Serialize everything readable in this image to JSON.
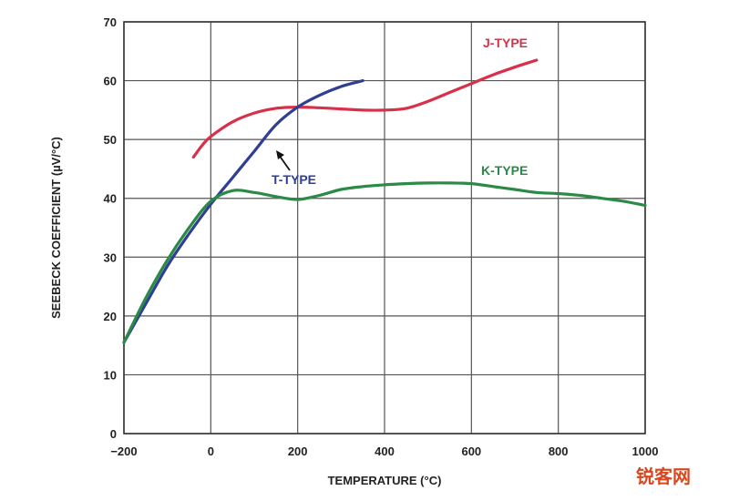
{
  "chart_data": {
    "type": "line",
    "xlabel": "TEMPERATURE (°C)",
    "ylabel": "SEEBECK COEFFICIENT (µV/°C)",
    "xlim": [
      -200,
      1000
    ],
    "ylim": [
      0,
      70
    ],
    "x_ticks": [
      "−200",
      "0",
      "200",
      "400",
      "600",
      "800",
      "1000"
    ],
    "y_ticks": [
      "0",
      "10",
      "20",
      "30",
      "40",
      "50",
      "60",
      "70"
    ],
    "grid": true,
    "series": [
      {
        "name": "J-TYPE",
        "color": "#d9304a",
        "x": [
          -40,
          -20,
          0,
          50,
          100,
          150,
          200,
          250,
          300,
          350,
          400,
          450,
          500,
          550,
          600,
          650,
          700,
          750
        ],
        "y": [
          47,
          49,
          50.5,
          53,
          54.5,
          55.3,
          55.5,
          55.4,
          55.2,
          55.0,
          55.0,
          55.3,
          56.5,
          58.0,
          59.5,
          61.0,
          62.3,
          63.5
        ]
      },
      {
        "name": "T-TYPE",
        "color": "#2e3f94",
        "x": [
          -200,
          -150,
          -100,
          -50,
          0,
          50,
          100,
          150,
          200,
          250,
          300,
          350
        ],
        "y": [
          15.5,
          22,
          28.5,
          34,
          39,
          43.5,
          48,
          52.5,
          55.5,
          57.5,
          59,
          60
        ]
      },
      {
        "name": "K-TYPE",
        "color": "#2a8a46",
        "x": [
          -200,
          -150,
          -100,
          -50,
          0,
          50,
          100,
          150,
          200,
          250,
          300,
          350,
          400,
          450,
          500,
          550,
          600,
          650,
          700,
          750,
          800,
          850,
          900,
          950,
          1000
        ],
        "y": [
          15.5,
          23,
          29.5,
          35,
          39.5,
          41.3,
          41,
          40.3,
          39.8,
          40.5,
          41.5,
          42.0,
          42.3,
          42.5,
          42.6,
          42.6,
          42.5,
          42.0,
          41.5,
          41.0,
          40.8,
          40.5,
          40.0,
          39.5,
          38.8
        ]
      }
    ]
  },
  "watermark": "锐客网"
}
